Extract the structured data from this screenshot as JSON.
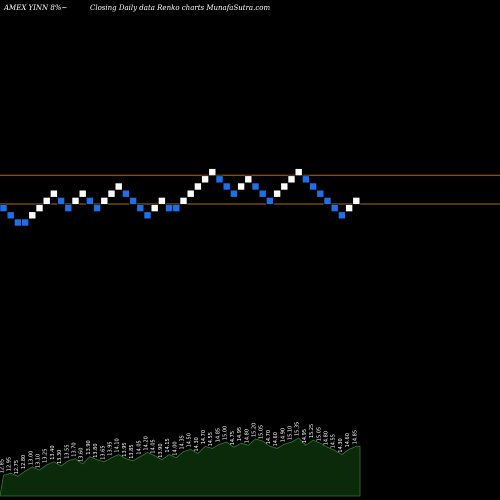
{
  "header": {
    "left": "AMEX  YINN  8%~",
    "center": "Closing Daily data  Renko  charts MunafaSutra.com"
  },
  "colors": {
    "background": "#000000",
    "up_brick": "#ffffff",
    "down_brick": "#1e6fe8",
    "ref_line": "#b06a10",
    "volume_fill": "#0a2a0a",
    "volume_line": "#2f7a2f",
    "brick_border": "#000000"
  },
  "chart_data": {
    "type": "renko",
    "brick_colors": [
      "down",
      "down",
      "down",
      "down",
      "up",
      "up",
      "up",
      "up",
      "down",
      "down",
      "up",
      "up",
      "down",
      "down",
      "up",
      "up",
      "up",
      "down",
      "down",
      "down",
      "down",
      "up",
      "up",
      "down",
      "down",
      "up",
      "up",
      "up",
      "up",
      "up",
      "down",
      "down",
      "down",
      "up",
      "up",
      "down",
      "down",
      "down",
      "up",
      "up",
      "up",
      "up",
      "down",
      "down",
      "down",
      "down",
      "down",
      "down",
      "up",
      "up"
    ],
    "brick_levels": [
      13,
      12,
      11,
      11,
      12,
      13,
      14,
      15,
      14,
      13,
      14,
      15,
      14,
      13,
      14,
      15,
      16,
      15,
      14,
      13,
      12,
      13,
      14,
      13,
      13,
      14,
      15,
      16,
      17,
      18,
      17,
      16,
      15,
      16,
      17,
      16,
      15,
      14,
      15,
      16,
      17,
      18,
      17,
      16,
      15,
      14,
      13,
      12,
      13,
      14
    ],
    "reference_lines": [
      {
        "name": "upper",
        "level": 17.5
      },
      {
        "name": "lower",
        "level": 13.5
      }
    ],
    "volume": [
      20,
      22,
      19,
      24,
      28,
      25,
      30,
      33,
      29,
      34,
      36,
      31,
      38,
      35,
      33,
      37,
      40,
      36,
      34,
      38,
      42,
      39,
      35,
      40,
      37,
      43,
      45,
      41,
      48,
      46,
      50,
      52,
      47,
      51,
      49,
      55,
      53,
      48,
      46,
      50,
      52,
      56,
      49,
      54,
      51,
      47,
      44,
      40,
      45,
      48
    ],
    "volume_labels": [
      "12.85",
      "12.95",
      "12.75",
      "12.80",
      "13.00",
      "13.10",
      "13.25",
      "13.40",
      "13.30",
      "13.55",
      "13.70",
      "13.60",
      "13.90",
      "13.80",
      "13.65",
      "13.95",
      "14.10",
      "13.95",
      "13.85",
      "14.05",
      "14.20",
      "14.05",
      "13.90",
      "14.15",
      "14.00",
      "14.35",
      "14.50",
      "14.30",
      "14.70",
      "14.55",
      "14.85",
      "15.00",
      "14.75",
      "14.95",
      "14.80",
      "15.20",
      "15.05",
      "14.70",
      "14.60",
      "14.90",
      "15.10",
      "15.35",
      "14.95",
      "15.25",
      "15.05",
      "14.80",
      "14.55",
      "14.30",
      "14.60",
      "14.85"
    ]
  }
}
